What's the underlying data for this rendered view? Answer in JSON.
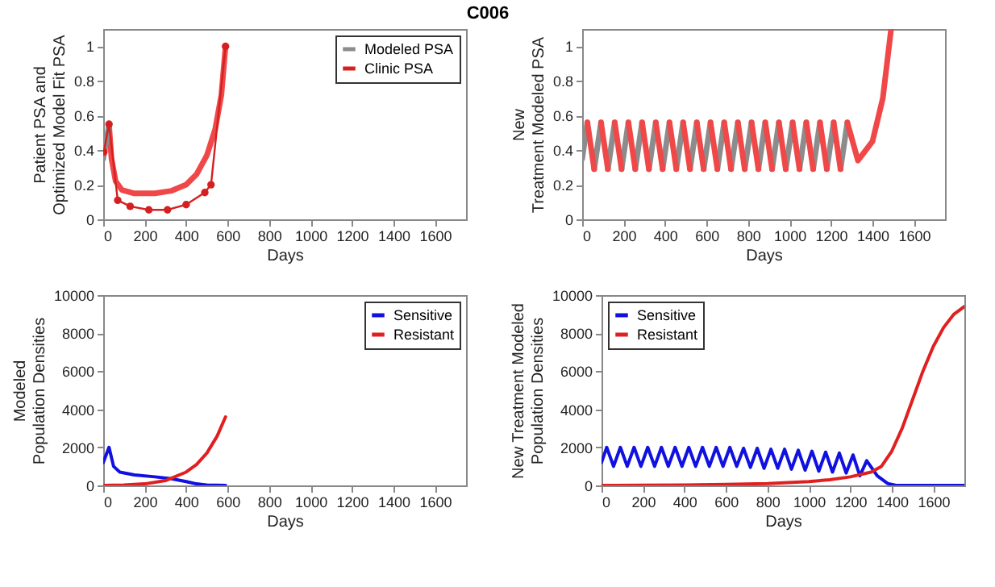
{
  "chart_data": [
    {
      "type": "line",
      "title": "C006",
      "xlabel": "Days",
      "ylabel": "Patient PSA and Optimized Model Fit PSA",
      "xlim": [
        0,
        1750
      ],
      "xticks": [
        0,
        200,
        400,
        600,
        800,
        1000,
        1200,
        1400,
        1600
      ],
      "ylim": [
        0,
        1.1
      ],
      "yticks": [
        0,
        0.2,
        0.4,
        0.6,
        0.8,
        1
      ],
      "legend": "top right",
      "series": [
        {
          "color": "#f04848",
          "x": [
            28,
            40,
            60,
            90,
            150,
            250,
            330,
            400,
            450,
            500,
            540,
            570,
            590
          ],
          "values": [
            0.55,
            0.35,
            0.22,
            0.17,
            0.15,
            0.15,
            0.165,
            0.2,
            0.26,
            0.37,
            0.52,
            0.72,
            1.0
          ]
        },
        {
          "name": "Modeled PSA",
          "color": "#8c8c8c",
          "x": [
            0,
            15,
            28
          ],
          "values": [
            0.35,
            0.45,
            0.55
          ]
        },
        {
          "name": "Clinic PSA",
          "color": "#d42020",
          "marker": "circle",
          "x": [
            3,
            28,
            70,
            130,
            220,
            310,
            400,
            490,
            520,
            590
          ],
          "values": [
            0.39,
            0.55,
            0.11,
            0.075,
            0.055,
            0.055,
            0.085,
            0.155,
            0.2,
            1.0
          ]
        }
      ]
    },
    {
      "type": "line",
      "xlabel": "Days",
      "ylabel": "New Treatment Modeled PSA",
      "xlim": [
        0,
        1750
      ],
      "xticks": [
        0,
        200,
        400,
        600,
        800,
        1000,
        1200,
        1400,
        1600
      ],
      "ylim": [
        0,
        1.1
      ],
      "yticks": [
        0,
        0.2,
        0.4,
        0.6,
        0.8,
        1
      ],
      "series": [
        {
          "color": "#8c8c8c",
          "x": [
            0,
            25,
            41,
            58,
            91,
            107,
            124,
            157,
            173,
            190,
            223,
            239,
            256,
            289,
            305,
            322,
            355,
            371,
            388,
            421,
            437,
            454,
            487,
            503,
            520,
            553,
            569,
            586,
            619,
            635,
            652,
            685,
            701,
            718,
            751,
            767,
            784,
            817,
            833,
            850,
            883,
            899,
            916,
            949,
            965,
            982,
            1015,
            1031,
            1048,
            1081,
            1097,
            1114,
            1147,
            1163,
            1180,
            1213,
            1229,
            1246,
            1279
          ],
          "values": [
            0.35,
            0.56,
            null,
            0.29,
            0.56,
            null,
            0.29,
            0.56,
            null,
            0.29,
            0.56,
            null,
            0.29,
            0.56,
            null,
            0.29,
            0.56,
            null,
            0.29,
            0.56,
            null,
            0.29,
            0.56,
            null,
            0.29,
            0.56,
            null,
            0.29,
            0.56,
            null,
            0.29,
            0.56,
            null,
            0.29,
            0.56,
            null,
            0.29,
            0.56,
            null,
            0.29,
            0.56,
            null,
            0.29,
            0.56,
            null,
            0.29,
            0.56,
            null,
            0.29,
            0.56,
            null,
            0.29,
            0.56,
            null,
            0.29,
            0.56,
            null,
            0.29,
            0.56
          ]
        },
        {
          "color": "#f04848",
          "x": [
            25,
            58,
            74,
            91,
            124,
            140,
            157,
            190,
            206,
            223,
            256,
            272,
            289,
            322,
            338,
            355,
            388,
            404,
            421,
            454,
            470,
            487,
            520,
            536,
            553,
            586,
            602,
            619,
            652,
            668,
            685,
            718,
            734,
            751,
            784,
            800,
            817,
            850,
            866,
            883,
            916,
            932,
            949,
            982,
            998,
            1015,
            1048,
            1064,
            1081,
            1114,
            1130,
            1147,
            1180,
            1196,
            1213,
            1246,
            1262,
            1279,
            1330,
            1400,
            1450,
            1490
          ],
          "values": [
            0.56,
            0.29,
            null,
            0.56,
            0.29,
            null,
            0.56,
            0.29,
            null,
            0.56,
            0.29,
            null,
            0.56,
            0.29,
            null,
            0.56,
            0.29,
            null,
            0.56,
            0.29,
            null,
            0.56,
            0.29,
            null,
            0.56,
            0.29,
            null,
            0.56,
            0.29,
            null,
            0.56,
            0.29,
            null,
            0.56,
            0.29,
            null,
            0.56,
            0.29,
            null,
            0.56,
            0.29,
            null,
            0.56,
            0.29,
            null,
            0.56,
            0.29,
            null,
            0.56,
            0.29,
            null,
            0.56,
            0.29,
            null,
            0.56,
            0.29,
            null,
            0.56,
            0.34,
            0.45,
            0.7,
            1.1
          ]
        }
      ]
    },
    {
      "type": "line",
      "xlabel": "Days",
      "ylabel": "Modeled Population Densities",
      "xlim": [
        0,
        1750
      ],
      "xticks": [
        0,
        200,
        400,
        600,
        800,
        1000,
        1200,
        1400,
        1600
      ],
      "ylim": [
        0,
        10000
      ],
      "yticks": [
        0,
        2000,
        4000,
        6000,
        8000,
        10000
      ],
      "legend": "top right",
      "series": [
        {
          "name": "Sensitive",
          "color": "#1010e0",
          "x": [
            0,
            28,
            50,
            80,
            150,
            250,
            330,
            400,
            450,
            500,
            590
          ],
          "values": [
            1200,
            2000,
            1000,
            700,
            550,
            450,
            350,
            200,
            80,
            20,
            0
          ]
        },
        {
          "name": "Resistant",
          "color": "#e02020",
          "x": [
            0,
            100,
            200,
            300,
            400,
            450,
            500,
            550,
            590
          ],
          "values": [
            0,
            20,
            80,
            250,
            700,
            1100,
            1700,
            2600,
            3600
          ]
        }
      ]
    },
    {
      "type": "line",
      "xlabel": "Days",
      "ylabel": "New Treatment Modeled Population Densities",
      "xlim": [
        0,
        1750
      ],
      "xticks": [
        0,
        200,
        400,
        600,
        800,
        1000,
        1200,
        1400,
        1600
      ],
      "ylim": [
        0,
        10000
      ],
      "yticks": [
        0,
        2000,
        4000,
        6000,
        8000,
        10000
      ],
      "legend": "top left",
      "series": [
        {
          "name": "Sensitive",
          "color": "#1010e0",
          "x": [
            0,
            25,
            58,
            91,
            124,
            157,
            190,
            223,
            256,
            289,
            322,
            355,
            388,
            421,
            454,
            487,
            520,
            553,
            586,
            619,
            652,
            685,
            718,
            751,
            784,
            817,
            850,
            883,
            916,
            949,
            982,
            1015,
            1048,
            1081,
            1114,
            1147,
            1180,
            1213,
            1246,
            1279,
            1330,
            1380,
            1420,
            1750
          ],
          "values": [
            1200,
            2000,
            1000,
            2000,
            1000,
            2000,
            1000,
            2000,
            1000,
            2000,
            1000,
            2000,
            1000,
            2000,
            1000,
            2000,
            1000,
            2000,
            1000,
            2000,
            1000,
            1950,
            950,
            1950,
            900,
            1900,
            900,
            1900,
            850,
            1850,
            800,
            1800,
            750,
            1750,
            700,
            1700,
            650,
            1600,
            500,
            1300,
            500,
            100,
            0,
            0
          ]
        },
        {
          "name": "Resistant",
          "color": "#e02020",
          "x": [
            0,
            200,
            400,
            600,
            800,
            1000,
            1100,
            1200,
            1300,
            1350,
            1400,
            1450,
            1500,
            1550,
            1600,
            1650,
            1700,
            1750
          ],
          "values": [
            0,
            10,
            20,
            50,
            100,
            200,
            300,
            450,
            700,
            1000,
            1800,
            3000,
            4500,
            6000,
            7300,
            8300,
            9000,
            9400
          ]
        }
      ]
    }
  ]
}
